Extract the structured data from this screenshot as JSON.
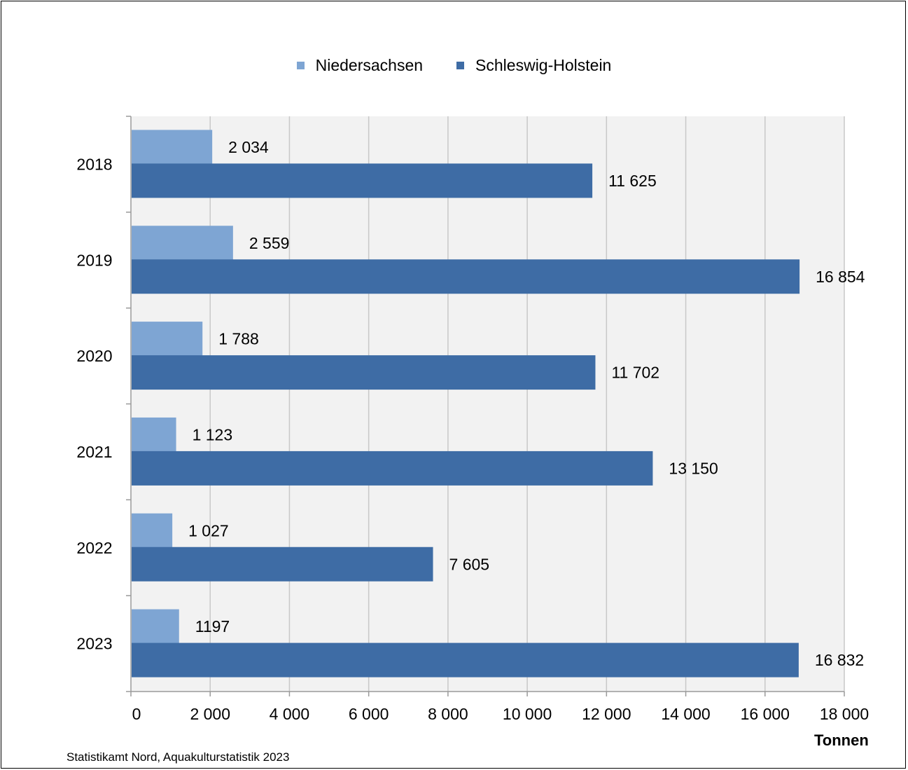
{
  "chart_data": {
    "type": "bar",
    "orientation": "horizontal",
    "categories": [
      "2018",
      "2019",
      "2020",
      "2021",
      "2022",
      "2023"
    ],
    "series": [
      {
        "name": "Niedersachsen",
        "color": "#7ea5d3",
        "values": [
          2034,
          2559,
          1788,
          1123,
          1027,
          1197
        ],
        "labels": [
          "2 034",
          "2 559",
          "1 788",
          "1 123",
          "1 027",
          "1197"
        ]
      },
      {
        "name": "Schleswig-Holstein",
        "color": "#3e6ca5",
        "values": [
          11625,
          16854,
          11702,
          13150,
          7605,
          16832
        ],
        "labels": [
          "11 625",
          "16 854",
          "11 702",
          "13 150",
          "7 605",
          "16 832"
        ]
      }
    ],
    "xlim": [
      0,
      18000
    ],
    "xticks": [
      0,
      2000,
      4000,
      6000,
      8000,
      10000,
      12000,
      14000,
      16000,
      18000
    ],
    "xtick_labels": [
      "0",
      "2 000",
      "4 000",
      "6 000",
      "8 000",
      "10 000",
      "12 000",
      "14 000",
      "16 000",
      "18 000"
    ],
    "xlabel": "Tonnen",
    "legend_position": "top",
    "grid": "vertical",
    "plot_background": "#f2f2f2"
  },
  "source": "Statistikamt  Nord, Aquakulturstatistik  2023"
}
